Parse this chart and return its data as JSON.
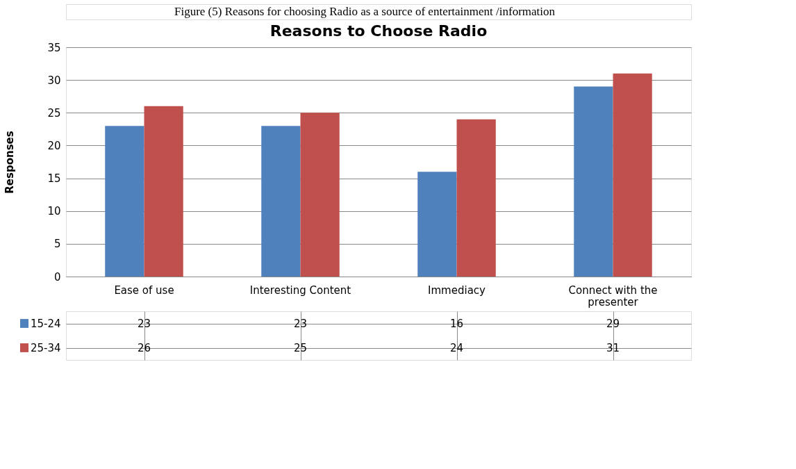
{
  "chart_data": {
    "type": "bar",
    "title": "Reasons to Choose Radio",
    "annotations": [
      "Figure (5) Reasons for choosing Radio as a source of entertainment /information"
    ],
    "ylabel": "Responses",
    "categories": [
      "Ease of use",
      "Interesting Content",
      "Immediacy",
      "Connect with the presenter"
    ],
    "series": [
      {
        "name": "15-24",
        "color": "#4f81bd",
        "values": [
          23,
          23,
          16,
          29
        ]
      },
      {
        "name": "25-34",
        "color": "#c0504d",
        "values": [
          26,
          25,
          24,
          31
        ]
      }
    ],
    "ylim": [
      0,
      35
    ],
    "yticks": [
      0,
      5,
      10,
      15,
      20,
      25,
      30,
      35
    ],
    "grid": "y",
    "legend": "bottom",
    "data_labels": true
  }
}
